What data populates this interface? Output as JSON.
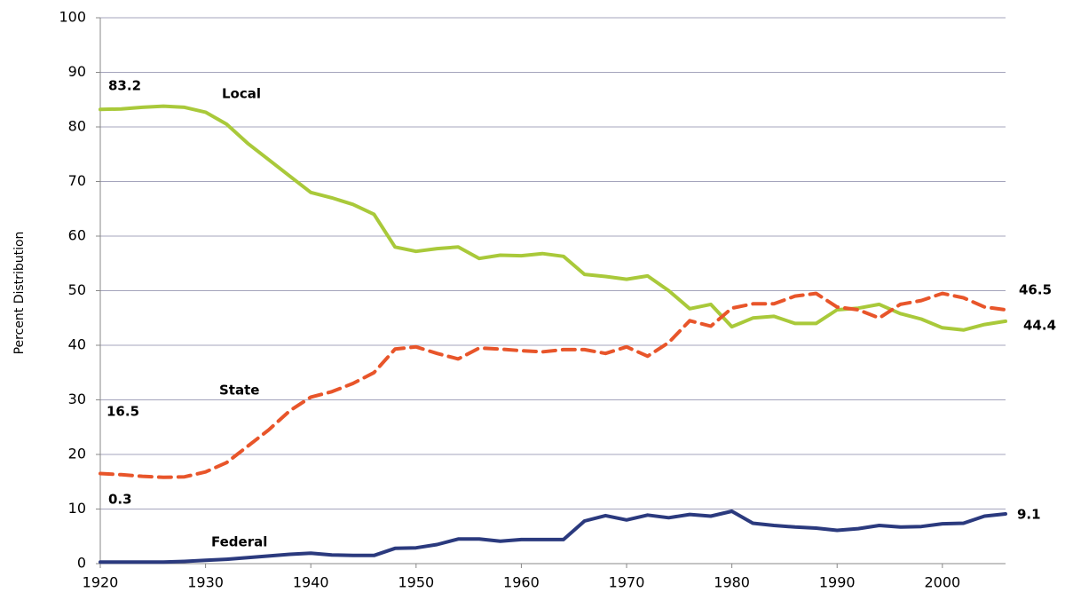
{
  "chart_data": {
    "type": "line",
    "y_label": "Percent Distribution",
    "x": [
      1920,
      1922,
      1924,
      1926,
      1928,
      1930,
      1932,
      1934,
      1936,
      1938,
      1940,
      1942,
      1944,
      1946,
      1948,
      1950,
      1952,
      1954,
      1956,
      1958,
      1960,
      1962,
      1964,
      1966,
      1968,
      1970,
      1972,
      1974,
      1976,
      1978,
      1980,
      1982,
      1984,
      1986,
      1988,
      1990,
      1992,
      1994,
      1996,
      1998,
      2000,
      2002,
      2004,
      2006
    ],
    "series": [
      {
        "name": "Local",
        "color": "#a9c93a",
        "dashed": false,
        "values": [
          83.2,
          83.3,
          83.6,
          83.8,
          83.6,
          82.7,
          80.5,
          77,
          74,
          71,
          68,
          67,
          65.8,
          64,
          58,
          57.2,
          57.7,
          58,
          55.9,
          56.5,
          56.4,
          56.8,
          56.3,
          53,
          52.6,
          52.1,
          52.7,
          50,
          46.7,
          47.5,
          43.4,
          45,
          45.3,
          44,
          44,
          46.5,
          46.8,
          47.5,
          45.8,
          44.8,
          43.2,
          42.8,
          43.8,
          44.4
        ]
      },
      {
        "name": "State",
        "color": "#e8552a",
        "dashed": true,
        "values": [
          16.5,
          16.3,
          16,
          15.8,
          15.9,
          16.8,
          18.5,
          21.5,
          24.5,
          28,
          30.5,
          31.5,
          33,
          35,
          39.3,
          39.7,
          38.5,
          37.5,
          39.5,
          39.3,
          39,
          38.8,
          39.2,
          39.2,
          38.5,
          39.7,
          38,
          40.5,
          44.5,
          43.5,
          46.8,
          47.6,
          47.6,
          49,
          49.5,
          47,
          46.5,
          45,
          47.5,
          48.2,
          49.5,
          48.7,
          47,
          46.5
        ]
      },
      {
        "name": "Federal",
        "color": "#2b3a7e",
        "dashed": false,
        "values": [
          0.3,
          0.3,
          0.3,
          0.3,
          0.4,
          0.6,
          0.8,
          1.1,
          1.4,
          1.7,
          1.9,
          1.6,
          1.5,
          1.5,
          2.8,
          2.9,
          3.5,
          4.5,
          4.5,
          4.1,
          4.4,
          4.4,
          4.4,
          7.8,
          8.8,
          8,
          8.9,
          8.4,
          9,
          8.7,
          9.6,
          7.4,
          7,
          6.7,
          6.5,
          6.1,
          6.4,
          7,
          6.7,
          6.8,
          7.3,
          7.4,
          8.7,
          9.1
        ]
      }
    ],
    "annotations": [
      "83.2",
      "16.5",
      "0.3",
      "46.5",
      "44.4",
      "9.1"
    ],
    "xlim": [
      1920,
      2006
    ],
    "xticks": [
      1920,
      1930,
      1940,
      1950,
      1960,
      1970,
      1980,
      1990,
      2000
    ],
    "ylim": [
      0,
      100
    ],
    "yticks": [
      0,
      10,
      20,
      30,
      40,
      50,
      60,
      70,
      80,
      90,
      100
    ],
    "grid": true
  }
}
